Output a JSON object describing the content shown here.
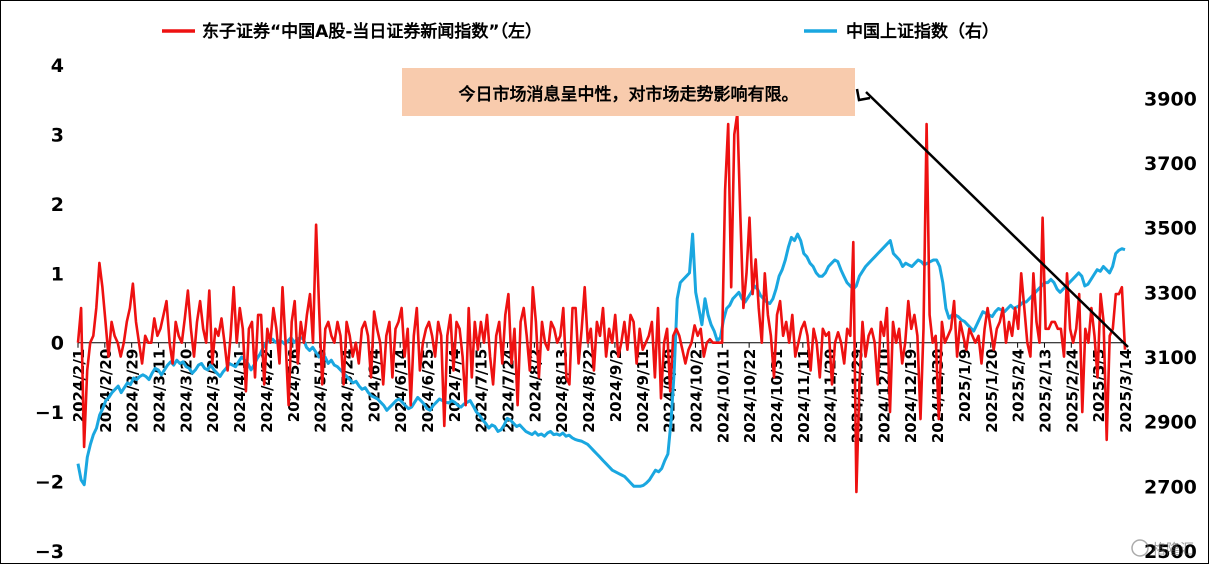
{
  "legend": {
    "left_series_label": "东子证券“中国A股-当日证券新闻指数”（左）",
    "right_series_label": "中国上证指数（右）"
  },
  "annotation": "今日市场消息呈中性，对市场走势影响有限。",
  "watermark": "格隆汇",
  "colors": {
    "news_index": "#ee1111",
    "sse_index": "#1aa7e0",
    "annotation_bg": "#f8cbad"
  },
  "chart_data": {
    "type": "line",
    "title": "",
    "legend_position": "top",
    "grid": false,
    "x_label": "",
    "x_tick_labels": [
      "2024/2/1",
      "2024/2/20",
      "2024/2/29",
      "2024/3/11",
      "2024/3/20",
      "2024/3/29",
      "2024/4/11",
      "2024/4/22",
      "2024/5/6",
      "2024/5/15",
      "2024/5/24",
      "2024/6/4",
      "2024/6/14",
      "2024/6/25",
      "2024/7/4",
      "2024/7/15",
      "2024/7/24",
      "2024/8/2",
      "2024/8/13",
      "2024/8/22",
      "2024/9/2",
      "2024/9/11",
      "2024/9/20",
      "2024/10/2",
      "2024/10/11",
      "2024/10/22",
      "2024/10/31",
      "2024/11/11",
      "2024/11/20",
      "2024/11/29",
      "2024/12/10",
      "2024/12/19",
      "2024/12/30",
      "2025/1/9",
      "2025/1/20",
      "2025/2/4",
      "2025/2/13",
      "2025/2/24",
      "2025/3/5",
      "2025/3/14"
    ],
    "left_axis": {
      "min": -3,
      "max": 4,
      "ticks": [
        -3,
        -2,
        -1,
        0,
        1,
        2,
        3,
        4
      ]
    },
    "right_axis": {
      "min": 2500,
      "max": 4000,
      "ticks": [
        2500,
        2700,
        2900,
        3100,
        3300,
        3500,
        3700,
        3900
      ]
    },
    "series": [
      {
        "name": "东子证券“中国A股-当日证券新闻指数”（左）",
        "axis": "left",
        "values": [
          0.0,
          0.5,
          -1.5,
          -0.4,
          0.0,
          0.1,
          0.5,
          1.15,
          0.8,
          0.3,
          -0.2,
          0.3,
          0.1,
          0.0,
          -0.2,
          0.0,
          0.3,
          0.5,
          0.85,
          0.3,
          0.0,
          -0.3,
          0.1,
          0.0,
          0.0,
          0.35,
          0.1,
          0.2,
          0.4,
          0.6,
          0.0,
          -0.3,
          0.3,
          0.1,
          0.0,
          0.35,
          0.75,
          0.2,
          -0.2,
          0.3,
          0.6,
          0.2,
          0.0,
          0.75,
          -0.3,
          0.2,
          0.1,
          0.35,
          0.0,
          -0.4,
          0.1,
          0.8,
          0.0,
          0.5,
          0.2,
          -0.7,
          0.2,
          0.3,
          -0.5,
          0.4,
          0.4,
          -0.6,
          0.2,
          0.0,
          0.5,
          0.2,
          -0.3,
          0.8,
          0.0,
          -0.9,
          0.3,
          0.6,
          -0.3,
          0.3,
          0.0,
          0.4,
          0.7,
          0.0,
          1.7,
          0.5,
          -0.6,
          0.2,
          0.3,
          0.1,
          0.0,
          0.3,
          0.1,
          -0.6,
          0.3,
          0.1,
          -0.2,
          0.0,
          -0.3,
          0.2,
          0.3,
          0.1,
          -0.5,
          0.45,
          0.2,
          0.0,
          -0.6,
          0.1,
          0.3,
          -0.5,
          0.2,
          0.3,
          0.5,
          -0.2,
          0.2,
          -0.9,
          0.1,
          0.5,
          -0.4,
          0.0,
          0.2,
          0.3,
          0.1,
          -0.2,
          0.3,
          0.1,
          -1.2,
          0.1,
          0.4,
          -0.4,
          0.3,
          0.2,
          -0.2,
          -0.9,
          0.5,
          -0.5,
          0.3,
          -0.1,
          0.3,
          0.0,
          0.4,
          -0.2,
          -0.6,
          0.1,
          0.3,
          -0.3,
          0.4,
          0.7,
          -0.3,
          0.2,
          -0.9,
          0.3,
          0.5,
          0.1,
          -0.4,
          0.8,
          0.3,
          -0.5,
          0.3,
          0.0,
          -0.1,
          0.3,
          0.2,
          0.0,
          0.1,
          0.5,
          -0.5,
          -0.6,
          0.5,
          0.5,
          -0.3,
          0.2,
          0.8,
          0.0,
          0.2,
          -0.4,
          0.3,
          0.1,
          0.5,
          -0.2,
          0.2,
          0.0,
          0.4,
          -0.2,
          0.0,
          0.3,
          -0.1,
          0.4,
          0.3,
          -0.3,
          0.2,
          -0.1,
          0.0,
          0.1,
          0.3,
          -0.5,
          0.5,
          -0.8,
          0.0,
          0.2,
          -0.7,
          0.1,
          0.2,
          0.1,
          -0.1,
          -0.3,
          -0.1,
          0.0,
          0.25,
          0.1,
          0.2,
          -0.2,
          0.0,
          0.05,
          0.0,
          0.0,
          0.0,
          0.0,
          2.2,
          3.15,
          0.8,
          3.0,
          3.3,
          1.8,
          0.5,
          1.0,
          1.8,
          0.7,
          1.2,
          0.5,
          0.0,
          1.0,
          0.4,
          0.1,
          -0.5,
          0.4,
          0.6,
          0.1,
          0.3,
          0.0,
          0.4,
          -0.2,
          0.0,
          0.2,
          0.3,
          0.1,
          -0.4,
          0.2,
          0.0,
          -0.5,
          0.2,
          0.1,
          0.15,
          -0.6,
          0.0,
          0.15,
          0.0,
          -0.3,
          0.2,
          0.1,
          1.45,
          -2.15,
          -0.6,
          0.3,
          -0.2,
          0.1,
          0.2,
          0.0,
          -0.6,
          0.3,
          0.1,
          0.5,
          -1.0,
          0.3,
          0.0,
          0.2,
          -0.3,
          0.0,
          0.6,
          0.2,
          0.4,
          0.1,
          -1.1,
          0.2,
          3.15,
          0.4,
          0.0,
          0.1,
          -1.1,
          0.3,
          0.0,
          0.1,
          0.2,
          0.6,
          -0.2,
          0.3,
          0.1,
          -0.1,
          0.2,
          0.1,
          0.0,
          0.1,
          -0.3,
          0.2,
          0.5,
          0.2,
          -0.1,
          0.2,
          0.3,
          0.5,
          0.0,
          0.3,
          0.1,
          0.5,
          0.2,
          1.0,
          0.5,
          0.0,
          -0.2,
          1.0,
          0.3,
          0.0,
          1.8,
          0.2,
          0.2,
          0.3,
          0.3,
          0.2,
          0.2,
          -0.2,
          1.0,
          0.2,
          0.0,
          0.2,
          0.7,
          -1.0,
          0.2,
          0.0,
          0.5,
          0.1,
          -0.5,
          0.7,
          0.3,
          -1.4,
          0.1,
          0.2,
          0.7,
          0.7,
          0.8,
          -0.1
        ]
      },
      {
        "name": "中国上证指数（右）",
        "axis": "right",
        "values": [
          2770,
          2720,
          2705,
          2790,
          2830,
          2860,
          2880,
          2920,
          2940,
          2965,
          2975,
          2990,
          3000,
          3010,
          2990,
          3005,
          3020,
          3015,
          3035,
          3030,
          3040,
          3045,
          3040,
          3030,
          3050,
          3065,
          3060,
          3045,
          3060,
          3075,
          3085,
          3075,
          3090,
          3080,
          3085,
          3070,
          3065,
          3050,
          3060,
          3075,
          3080,
          3065,
          3060,
          3075,
          3060,
          3050,
          3040,
          3055,
          3065,
          3080,
          3075,
          3070,
          3085,
          3100,
          3090,
          3080,
          3060,
          3075,
          3095,
          3110,
          3130,
          3145,
          3150,
          3155,
          3145,
          3150,
          3148,
          3140,
          3150,
          3160,
          3145,
          3155,
          3160,
          3155,
          3130,
          3120,
          3130,
          3115,
          3100,
          3110,
          3100,
          3080,
          3090,
          3075,
          3070,
          3060,
          3050,
          3040,
          3030,
          3020,
          3025,
          3010,
          3000,
          3005,
          2990,
          2980,
          2975,
          2970,
          2960,
          2950,
          2935,
          2945,
          2955,
          2965,
          2970,
          2960,
          2950,
          2940,
          2945,
          2960,
          2975,
          2965,
          2955,
          2940,
          2935,
          2950,
          2960,
          2970,
          2965,
          2960,
          2958,
          2965,
          2960,
          2950,
          2945,
          2955,
          2960,
          2965,
          2948,
          2930,
          2920,
          2905,
          2895,
          2880,
          2890,
          2885,
          2870,
          2875,
          2890,
          2910,
          2905,
          2895,
          2885,
          2890,
          2880,
          2870,
          2865,
          2860,
          2868,
          2858,
          2862,
          2855,
          2865,
          2870,
          2860,
          2862,
          2858,
          2865,
          2855,
          2858,
          2850,
          2845,
          2842,
          2840,
          2835,
          2830,
          2820,
          2810,
          2800,
          2790,
          2780,
          2770,
          2760,
          2750,
          2745,
          2740,
          2735,
          2730,
          2720,
          2710,
          2700,
          2700,
          2700,
          2703,
          2710,
          2720,
          2735,
          2750,
          2745,
          2755,
          2780,
          2800,
          2900,
          3050,
          3280,
          3330,
          3340,
          3350,
          3360,
          3480,
          3300,
          3250,
          3200,
          3280,
          3230,
          3200,
          3180,
          3150,
          3160,
          3215,
          3250,
          3260,
          3280,
          3290,
          3300,
          3280,
          3270,
          3285,
          3300,
          3320,
          3310,
          3290,
          3280,
          3270,
          3265,
          3280,
          3310,
          3350,
          3370,
          3400,
          3440,
          3470,
          3460,
          3480,
          3460,
          3420,
          3410,
          3390,
          3380,
          3360,
          3350,
          3350,
          3360,
          3380,
          3390,
          3400,
          3395,
          3370,
          3350,
          3330,
          3320,
          3310,
          3320,
          3350,
          3365,
          3380,
          3390,
          3400,
          3410,
          3420,
          3430,
          3440,
          3450,
          3460,
          3420,
          3410,
          3400,
          3380,
          3390,
          3385,
          3380,
          3390,
          3400,
          3395,
          3385,
          3390,
          3395,
          3400,
          3400,
          3380,
          3330,
          3250,
          3220,
          3230,
          3230,
          3225,
          3215,
          3210,
          3200,
          3190,
          3180,
          3200,
          3220,
          3240,
          3235,
          3230,
          3225,
          3240,
          3250,
          3245,
          3240,
          3250,
          3260,
          3250,
          3255,
          3260,
          3270,
          3270,
          3280,
          3290,
          3300,
          3310,
          3320,
          3330,
          3330,
          3340,
          3330,
          3310,
          3300,
          3310,
          3320,
          3330,
          3340,
          3350,
          3360,
          3350,
          3320,
          3325,
          3340,
          3355,
          3370,
          3365,
          3380,
          3370,
          3360,
          3380,
          3420,
          3430,
          3435,
          3432
        ]
      }
    ]
  }
}
